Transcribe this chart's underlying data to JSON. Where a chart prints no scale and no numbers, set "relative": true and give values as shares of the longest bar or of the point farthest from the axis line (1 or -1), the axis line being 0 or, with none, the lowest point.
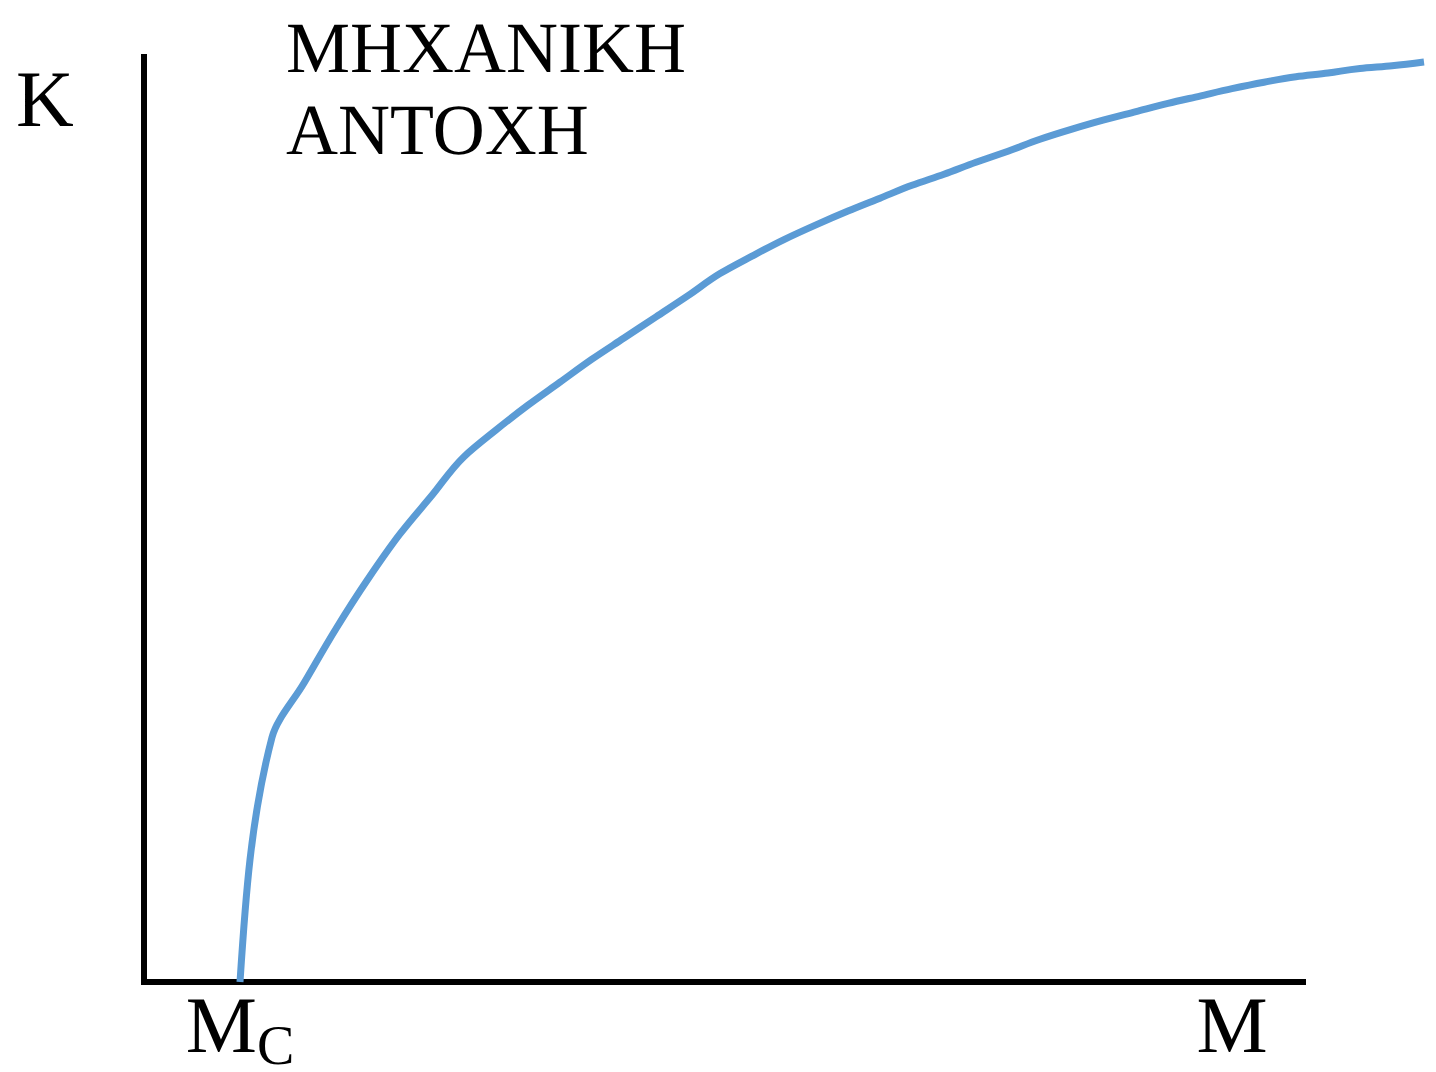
{
  "chart_data": {
    "type": "line",
    "title": "ΜΗΧΑΝΙΚΗ ΑΝΤΟΧΗ",
    "ylabel": "K",
    "relative": true,
    "categories": [
      null,
      null,
      null,
      "M$_{C}$",
      null,
      null,
      null,
      null,
      null,
      null,
      null,
      null,
      null,
      null,
      null,
      null,
      null,
      null,
      null,
      null,
      null,
      null,
      null,
      null,
      null,
      null,
      null,
      null,
      null,
      null,
      null,
      null,
      null,
      null,
      "M",
      null,
      null,
      null,
      null,
      null,
      null
    ],
    "color": "#5b9bd5",
    "values": [
      null,
      null,
      null,
      0,
      0.266,
      0.325,
      0.384,
      0.438,
      0.487,
      0.529,
      0.571,
      0.6,
      0.627,
      0.652,
      0.677,
      0.7,
      0.723,
      0.746,
      0.77,
      0.789,
      0.807,
      0.823,
      0.838,
      0.852,
      0.866,
      0.878,
      0.891,
      0.903,
      0.916,
      0.927,
      0.937,
      0.946,
      0.955,
      0.963,
      0.971,
      0.978,
      0.984,
      0.988,
      0.993,
      0.996,
      1
    ]
  }
}
